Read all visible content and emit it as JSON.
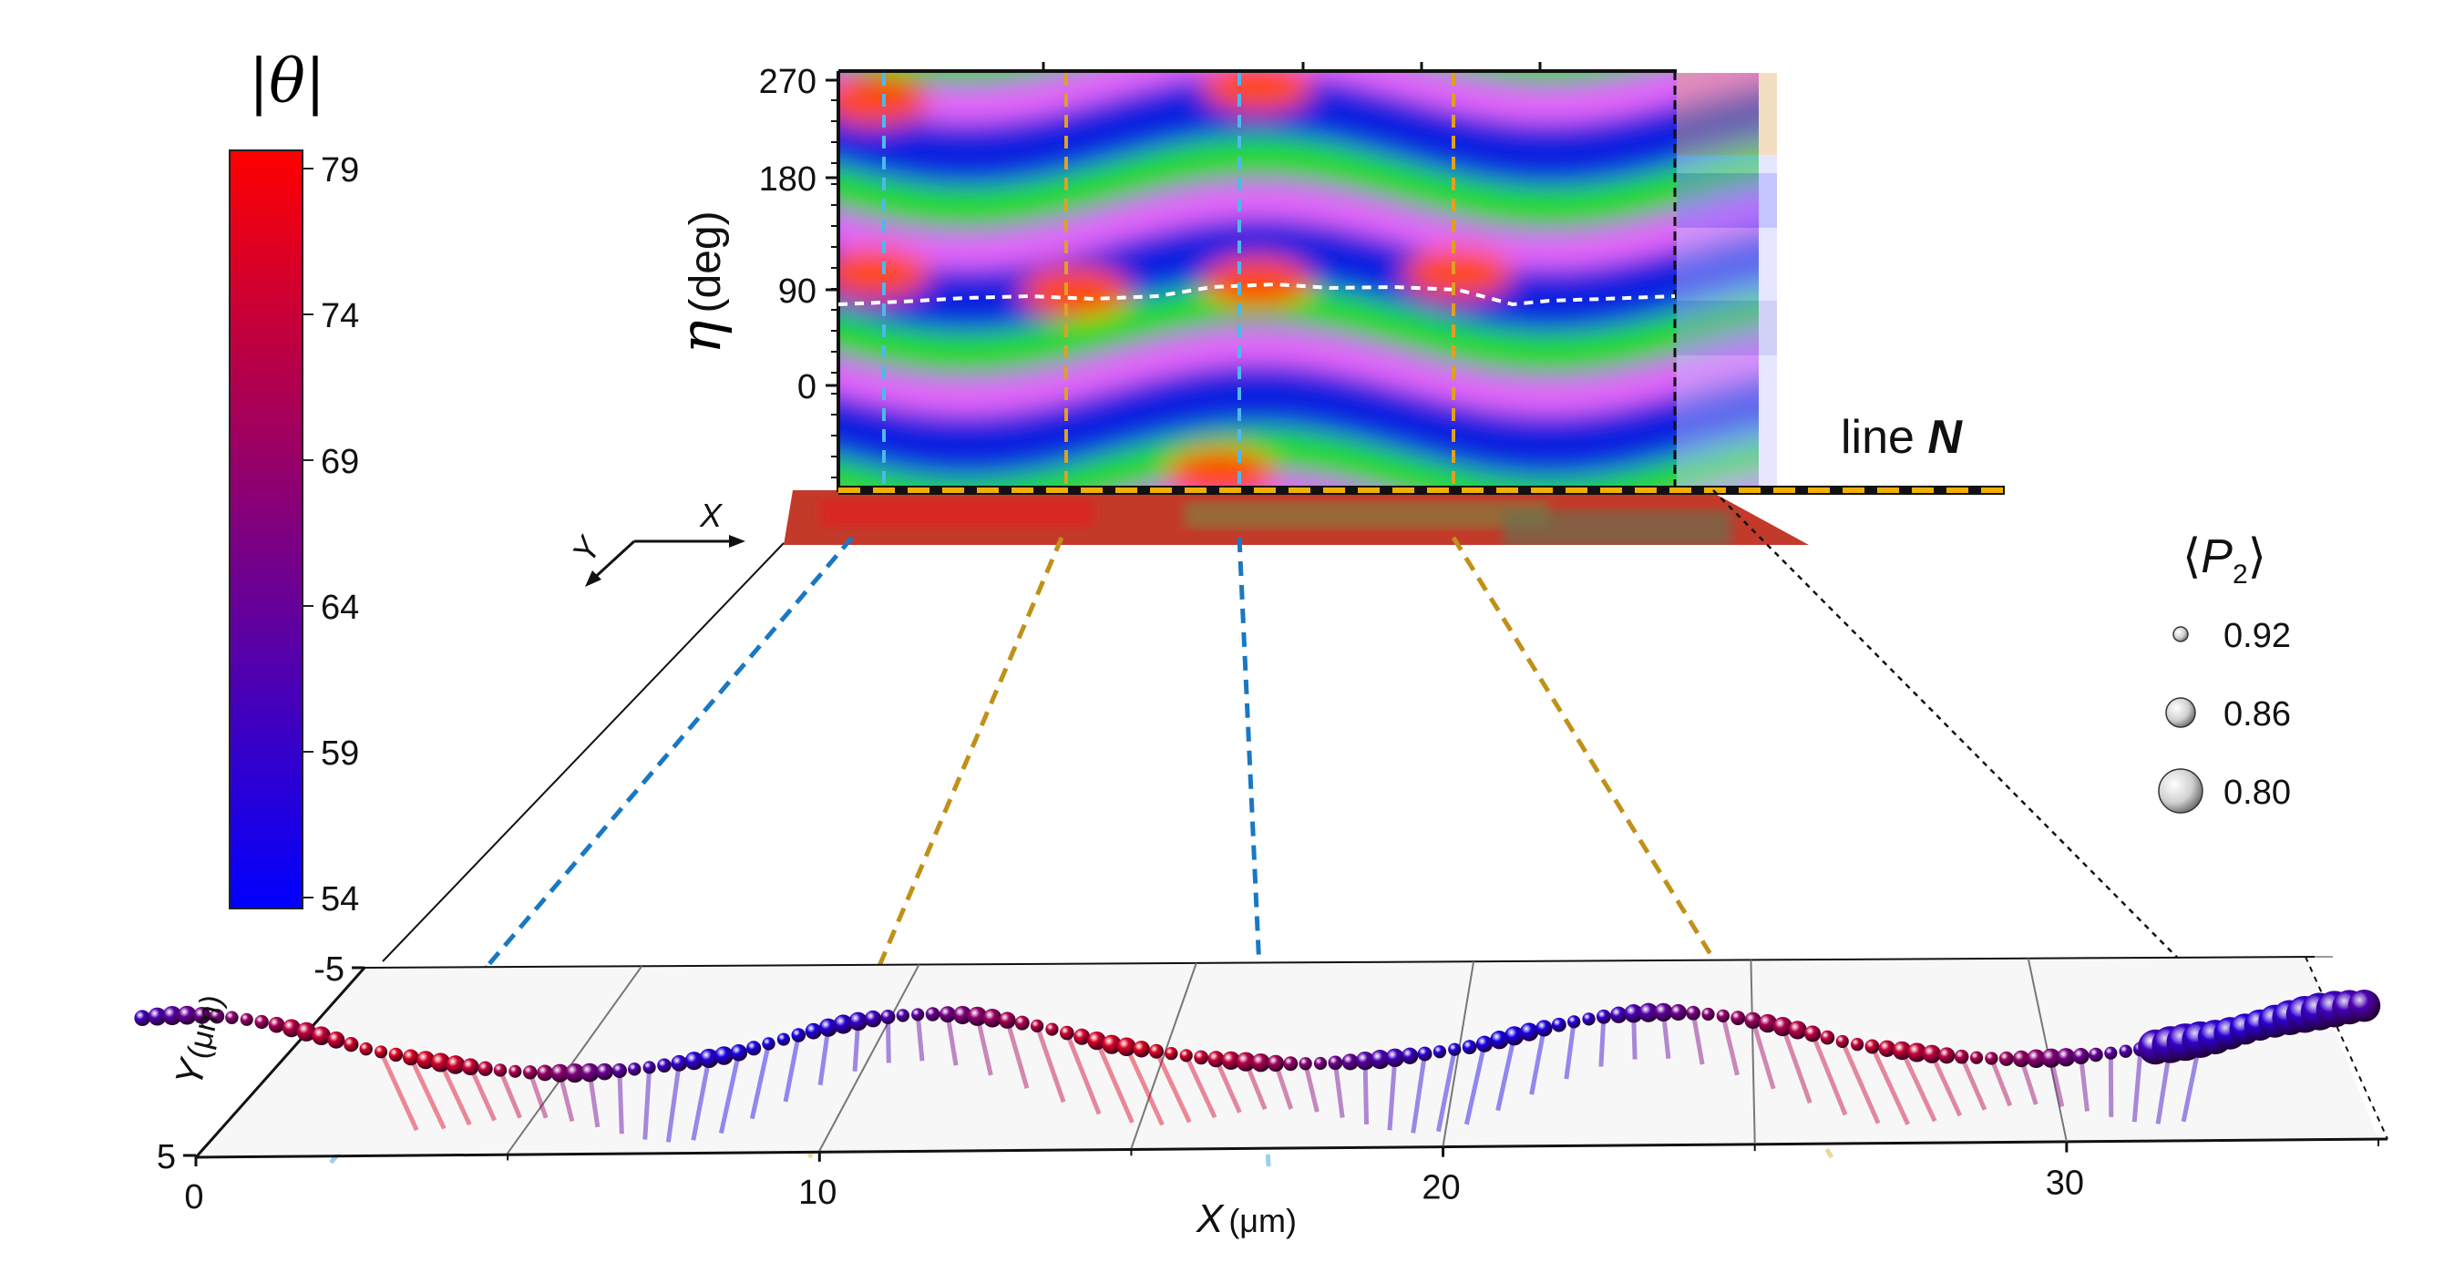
{
  "colorbar": {
    "title": "|θ|",
    "ticks": [
      "79",
      "74",
      "69",
      "64",
      "59",
      "54"
    ],
    "range": [
      54,
      79
    ],
    "colors": {
      "high": "#ff0000",
      "mid": "#800080",
      "low": "#0000ff"
    }
  },
  "heatmap": {
    "ylabel_symbol": "η",
    "ylabel_unit": "(deg)",
    "yticks": [
      "270",
      "180",
      "90",
      "0"
    ],
    "line_label": "line ",
    "line_label_bold": "N",
    "band_colors": [
      "#ff4a00",
      "#20e020",
      "#ff70ff",
      "#1020e0"
    ]
  },
  "axes_glyph": {
    "x": "X",
    "y": "Y"
  },
  "legend": {
    "title_symbol": "P",
    "title_sub": "2",
    "items": [
      {
        "label": "0.92"
      },
      {
        "label": "0.86"
      },
      {
        "label": "0.80"
      }
    ]
  },
  "plot3d": {
    "x_label": "X",
    "x_unit": "(μm)",
    "y_label": "Y",
    "y_unit": "(μm)",
    "x_ticks": [
      "0",
      "10",
      "20",
      "30"
    ],
    "y_ticks": [
      "-5",
      "5"
    ]
  },
  "chart_data": {
    "type": "scatter",
    "x_range": [
      0,
      35
    ],
    "y_range": [
      -5,
      5
    ],
    "theta_range": [
      54,
      79
    ],
    "p2_legend_values": [
      0.92,
      0.86,
      0.8
    ]
  }
}
